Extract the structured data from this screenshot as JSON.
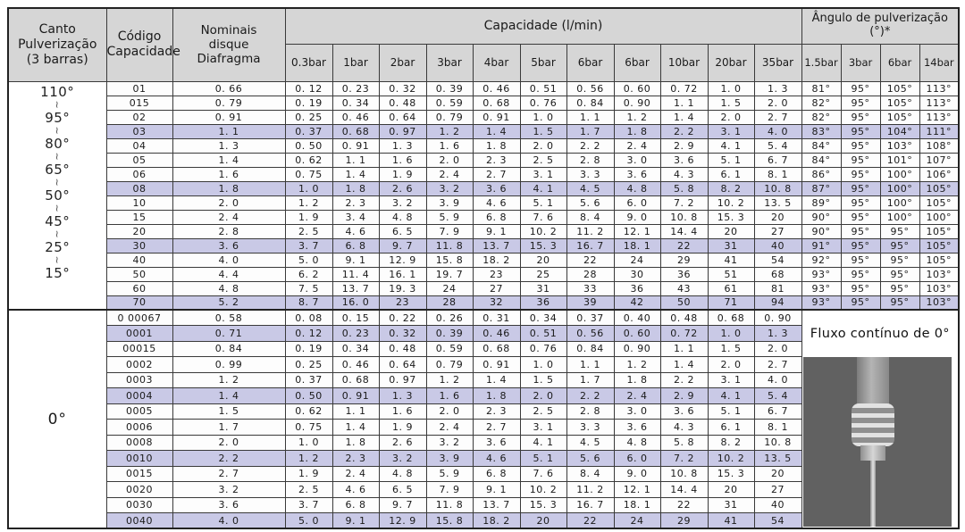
{
  "colors": {
    "header_bg": "#d6d6d6",
    "row_highlight": "#c9c9e6",
    "row_default": "#fdfdfd",
    "border": "#3a3a3a",
    "photo_bg": "#616161"
  },
  "header": {
    "canto": "Canto\nPulverização\n(3 barras)",
    "codigo": "Código\nCapacidade",
    "nominais": "Nominais\ndisque\nDiafragma",
    "capacidade": "Capacidade (l/min)",
    "angulo": "Ângulo de pulverização\n(°)*",
    "capacity_cols": [
      "0.3bar",
      "1bar",
      "2bar",
      "3bar",
      "4bar",
      "5bar",
      "6bar",
      "6bar",
      "10bar",
      "20bar",
      "35bar"
    ],
    "angle_cols": [
      "1.5bar",
      "3bar",
      "6bar",
      "14bar"
    ]
  },
  "upper_section": {
    "angle_labels": [
      "110°",
      "95°",
      "80°",
      "65°",
      "50°",
      "45°",
      "25°",
      "15°"
    ],
    "range_separator": "~",
    "rows": [
      {
        "code": "01",
        "nominal": "0. 66",
        "capacity": [
          "0. 12",
          "0. 23",
          "0. 32",
          "0. 39",
          "0. 46",
          "0. 51",
          "0. 56",
          "0. 60",
          "0. 72",
          "1. 0",
          "1. 3"
        ],
        "angles": [
          "81°",
          "95°",
          "105°",
          "113°"
        ],
        "highlight": false
      },
      {
        "code": "015",
        "nominal": "0. 79",
        "capacity": [
          "0. 19",
          "0. 34",
          "0. 48",
          "0. 59",
          "0. 68",
          "0. 76",
          "0. 84",
          "0. 90",
          "1. 1",
          "1. 5",
          "2. 0"
        ],
        "angles": [
          "82°",
          "95°",
          "105°",
          "113°"
        ],
        "highlight": false
      },
      {
        "code": "02",
        "nominal": "0. 91",
        "capacity": [
          "0. 25",
          "0. 46",
          "0. 64",
          "0. 79",
          "0. 91",
          "1. 0",
          "1. 1",
          "1. 2",
          "1. 4",
          "2. 0",
          "2. 7"
        ],
        "angles": [
          "82°",
          "95°",
          "105°",
          "113°"
        ],
        "highlight": false
      },
      {
        "code": "03",
        "nominal": "1. 1",
        "capacity": [
          "0. 37",
          "0. 68",
          "0. 97",
          "1. 2",
          "1. 4",
          "1. 5",
          "1. 7",
          "1. 8",
          "2. 2",
          "3. 1",
          "4. 0"
        ],
        "angles": [
          "83°",
          "95°",
          "104°",
          "111°"
        ],
        "highlight": true
      },
      {
        "code": "04",
        "nominal": "1. 3",
        "capacity": [
          "0. 50",
          "0. 91",
          "1. 3",
          "1. 6",
          "1. 8",
          "2. 0",
          "2. 2",
          "2. 4",
          "2. 9",
          "4. 1",
          "5. 4"
        ],
        "angles": [
          "84°",
          "95°",
          "103°",
          "108°"
        ],
        "highlight": false
      },
      {
        "code": "05",
        "nominal": "1. 4",
        "capacity": [
          "0. 62",
          "1. 1",
          "1. 6",
          "2. 0",
          "2. 3",
          "2. 5",
          "2. 8",
          "3. 0",
          "3. 6",
          "5. 1",
          "6. 7"
        ],
        "angles": [
          "84°",
          "95°",
          "101°",
          "107°"
        ],
        "highlight": false
      },
      {
        "code": "06",
        "nominal": "1. 6",
        "capacity": [
          "0. 75",
          "1. 4",
          "1. 9",
          "2. 4",
          "2. 7",
          "3. 1",
          "3. 3",
          "3. 6",
          "4. 3",
          "6. 1",
          "8. 1"
        ],
        "angles": [
          "86°",
          "95°",
          "100°",
          "106°"
        ],
        "highlight": false
      },
      {
        "code": "08",
        "nominal": "1. 8",
        "capacity": [
          "1. 0",
          "1. 8",
          "2. 6",
          "3. 2",
          "3. 6",
          "4. 1",
          "4. 5",
          "4. 8",
          "5. 8",
          "8. 2",
          "10. 8"
        ],
        "angles": [
          "87°",
          "95°",
          "100°",
          "105°"
        ],
        "highlight": true
      },
      {
        "code": "10",
        "nominal": "2. 0",
        "capacity": [
          "1. 2",
          "2. 3",
          "3. 2",
          "3. 9",
          "4. 6",
          "5. 1",
          "5. 6",
          "6. 0",
          "7. 2",
          "10. 2",
          "13. 5"
        ],
        "angles": [
          "89°",
          "95°",
          "100°",
          "105°"
        ],
        "highlight": false
      },
      {
        "code": "15",
        "nominal": "2. 4",
        "capacity": [
          "1. 9",
          "3. 4",
          "4. 8",
          "5. 9",
          "6. 8",
          "7. 6",
          "8. 4",
          "9. 0",
          "10. 8",
          "15. 3",
          "20"
        ],
        "angles": [
          "90°",
          "95°",
          "100°",
          "100°"
        ],
        "highlight": false
      },
      {
        "code": "20",
        "nominal": "2. 8",
        "capacity": [
          "2. 5",
          "4. 6",
          "6. 5",
          "7. 9",
          "9. 1",
          "10. 2",
          "11. 2",
          "12. 1",
          "14. 4",
          "20",
          "27"
        ],
        "angles": [
          "90°",
          "95°",
          "95°",
          "105°"
        ],
        "highlight": false
      },
      {
        "code": "30",
        "nominal": "3. 6",
        "capacity": [
          "3. 7",
          "6. 8",
          "9. 7",
          "11. 8",
          "13. 7",
          "15. 3",
          "16. 7",
          "18. 1",
          "22",
          "31",
          "40"
        ],
        "angles": [
          "91°",
          "95°",
          "95°",
          "105°"
        ],
        "highlight": true
      },
      {
        "code": "40",
        "nominal": "4. 0",
        "capacity": [
          "5. 0",
          "9. 1",
          "12. 9",
          "15. 8",
          "18. 2",
          "20",
          "22",
          "24",
          "29",
          "41",
          "54"
        ],
        "angles": [
          "92°",
          "95°",
          "95°",
          "105°"
        ],
        "highlight": false
      },
      {
        "code": "50",
        "nominal": "4. 4",
        "capacity": [
          "6. 2",
          "11. 4",
          "16. 1",
          "19. 7",
          "23",
          "25",
          "28",
          "30",
          "36",
          "51",
          "68"
        ],
        "angles": [
          "93°",
          "95°",
          "95°",
          "103°"
        ],
        "highlight": false
      },
      {
        "code": "60",
        "nominal": "4. 8",
        "capacity": [
          "7. 5",
          "13. 7",
          "19. 3",
          "24",
          "27",
          "31",
          "33",
          "36",
          "43",
          "61",
          "81"
        ],
        "angles": [
          "93°",
          "95°",
          "95°",
          "103°"
        ],
        "highlight": false
      },
      {
        "code": "70",
        "nominal": "5. 2",
        "capacity": [
          "8. 7",
          "16. 0",
          "23",
          "28",
          "32",
          "36",
          "39",
          "42",
          "50",
          "71",
          "94"
        ],
        "angles": [
          "93°",
          "95°",
          "95°",
          "103°"
        ],
        "highlight": true
      }
    ]
  },
  "lower_section": {
    "angle_label": "0°",
    "note": "Fluxo contínuo de 0°",
    "rows": [
      {
        "code": "0 00067",
        "nominal": "0. 58",
        "capacity": [
          "0. 08",
          "0. 15",
          "0. 22",
          "0. 26",
          "0. 31",
          "0. 34",
          "0. 37",
          "0. 40",
          "0. 48",
          "0. 68",
          "0. 90"
        ],
        "highlight": false
      },
      {
        "code": "0001",
        "nominal": "0. 71",
        "capacity": [
          "0. 12",
          "0. 23",
          "0. 32",
          "0. 39",
          "0. 46",
          "0. 51",
          "0. 56",
          "0. 60",
          "0. 72",
          "1. 0",
          "1. 3"
        ],
        "highlight": true
      },
      {
        "code": "00015",
        "nominal": "0. 84",
        "capacity": [
          "0. 19",
          "0. 34",
          "0. 48",
          "0. 59",
          "0. 68",
          "0. 76",
          "0. 84",
          "0. 90",
          "1. 1",
          "1. 5",
          "2. 0"
        ],
        "highlight": false
      },
      {
        "code": "0002",
        "nominal": "0. 99",
        "capacity": [
          "0. 25",
          "0. 46",
          "0. 64",
          "0. 79",
          "0. 91",
          "1. 0",
          "1. 1",
          "1. 2",
          "1. 4",
          "2. 0",
          "2. 7"
        ],
        "highlight": false
      },
      {
        "code": "0003",
        "nominal": "1. 2",
        "capacity": [
          "0. 37",
          "0. 68",
          "0. 97",
          "1. 2",
          "1. 4",
          "1. 5",
          "1. 7",
          "1. 8",
          "2. 2",
          "3. 1",
          "4. 0"
        ],
        "highlight": false
      },
      {
        "code": "0004",
        "nominal": "1. 4",
        "capacity": [
          "0. 50",
          "0. 91",
          "1. 3",
          "1. 6",
          "1. 8",
          "2. 0",
          "2. 2",
          "2. 4",
          "2. 9",
          "4. 1",
          "5. 4"
        ],
        "highlight": true
      },
      {
        "code": "0005",
        "nominal": "1. 5",
        "capacity": [
          "0. 62",
          "1. 1",
          "1. 6",
          "2. 0",
          "2. 3",
          "2. 5",
          "2. 8",
          "3. 0",
          "3. 6",
          "5. 1",
          "6. 7"
        ],
        "highlight": false
      },
      {
        "code": "0006",
        "nominal": "1. 7",
        "capacity": [
          "0. 75",
          "1. 4",
          "1. 9",
          "2. 4",
          "2. 7",
          "3. 1",
          "3. 3",
          "3. 6",
          "4. 3",
          "6. 1",
          "8. 1"
        ],
        "highlight": false
      },
      {
        "code": "0008",
        "nominal": "2. 0",
        "capacity": [
          "1. 0",
          "1. 8",
          "2. 6",
          "3. 2",
          "3. 6",
          "4. 1",
          "4. 5",
          "4. 8",
          "5. 8",
          "8. 2",
          "10. 8"
        ],
        "highlight": false
      },
      {
        "code": "0010",
        "nominal": "2. 2",
        "capacity": [
          "1. 2",
          "2. 3",
          "3. 2",
          "3. 9",
          "4. 6",
          "5. 1",
          "5. 6",
          "6. 0",
          "7. 2",
          "10. 2",
          "13. 5"
        ],
        "highlight": true
      },
      {
        "code": "0015",
        "nominal": "2. 7",
        "capacity": [
          "1. 9",
          "2. 4",
          "4. 8",
          "5. 9",
          "6. 8",
          "7. 6",
          "8. 4",
          "9. 0",
          "10. 8",
          "15. 3",
          "20"
        ],
        "highlight": false
      },
      {
        "code": "0020",
        "nominal": "3. 2",
        "capacity": [
          "2. 5",
          "4. 6",
          "6. 5",
          "7. 9",
          "9. 1",
          "10. 2",
          "11. 2",
          "12. 1",
          "14. 4",
          "20",
          "27"
        ],
        "highlight": false
      },
      {
        "code": "0030",
        "nominal": "3. 6",
        "capacity": [
          "3. 7",
          "6. 8",
          "9. 7",
          "11. 8",
          "13. 7",
          "15. 3",
          "16. 7",
          "18. 1",
          "22",
          "31",
          "40"
        ],
        "highlight": false
      },
      {
        "code": "0040",
        "nominal": "4. 0",
        "capacity": [
          "5. 0",
          "9. 1",
          "12. 9",
          "15. 8",
          "18. 2",
          "20",
          "22",
          "24",
          "29",
          "41",
          "54"
        ],
        "highlight": true
      }
    ]
  }
}
